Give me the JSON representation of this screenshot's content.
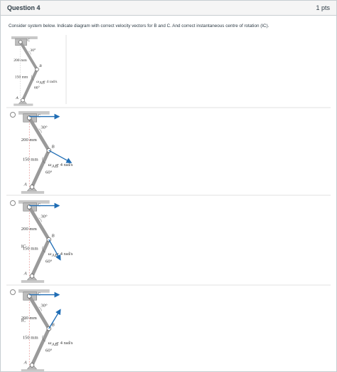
{
  "header": {
    "title": "Question 4",
    "points": "1 pts"
  },
  "question": {
    "text": "Consider system below. Indicate diagram with correct velocity vectors for B and C. And correct instantaneous centre of rotation (IC).",
    "figure": {
      "c": "C",
      "angle_top": "30°",
      "length_top": "200 mm",
      "b": "B",
      "length_bottom": "150 mm",
      "omega": "ω",
      "omega_sub": "AB",
      "omega_value": "= 4 rad/s",
      "angle_bottom": "60°",
      "a": "A"
    }
  },
  "options": [
    {
      "figure": {
        "c": "C",
        "angle_top": "30°",
        "length_top": "200 mm",
        "b": "B",
        "length_bottom": "150 mm",
        "omega": "ω",
        "omega_sub": "AB",
        "omega_value": "= 4 rad/s",
        "angle_bottom": "60°",
        "a": "A"
      }
    },
    {
      "figure": {
        "c": "C",
        "angle_top": "30°",
        "length_top": "200 mm",
        "b": "B",
        "length_bottom": "150 mm",
        "omega": "ω",
        "omega_sub": "AB",
        "omega_value": "= 4 rad/s",
        "angle_bottom": "60°",
        "a": "A",
        "ic": "IC"
      }
    },
    {
      "figure": {
        "c": "C",
        "angle_top": "30°",
        "length_top": "200 mm",
        "b": "B",
        "length_bottom": "150 mm",
        "omega": "ω",
        "omega_sub": "AB",
        "omega_value": "= 4 rad/s",
        "angle_bottom": "60°",
        "a": "A",
        "ic": "IC"
      }
    }
  ]
}
